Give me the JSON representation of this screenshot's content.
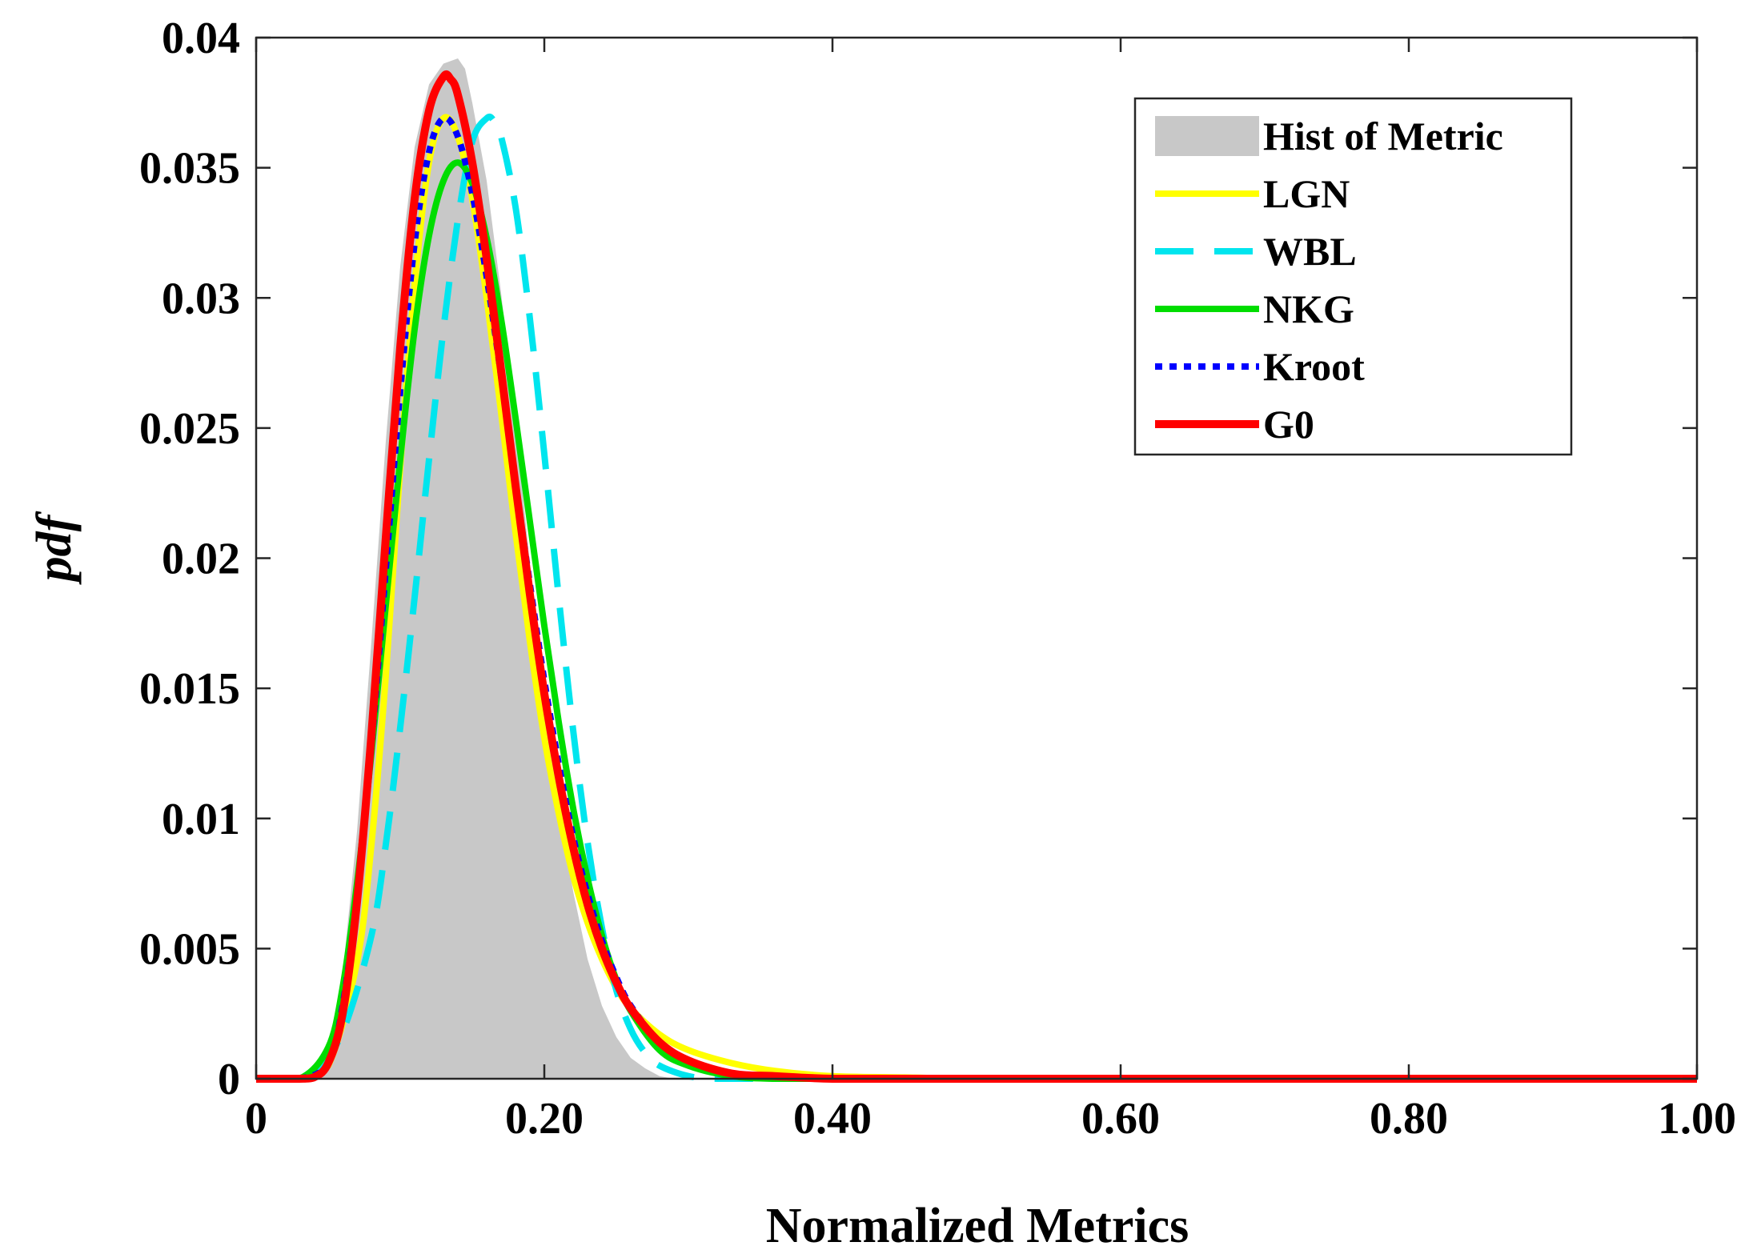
{
  "chart_data": {
    "type": "line",
    "title": "",
    "xlabel": "Normalized Metrics",
    "ylabel": "pdf",
    "xlim": [
      0,
      1
    ],
    "ylim": [
      0,
      0.04
    ],
    "grid": false,
    "legend_position": "top-right",
    "x_ticks": [
      0,
      0.2,
      0.4,
      0.6,
      0.8,
      1.0
    ],
    "x_tick_labels": [
      "0",
      "0.20",
      "0.40",
      "0.60",
      "0.80",
      "1.00"
    ],
    "y_ticks": [
      0,
      0.005,
      0.01,
      0.015,
      0.02,
      0.025,
      0.03,
      0.035,
      0.04
    ],
    "y_tick_labels": [
      "0",
      "0.005",
      "0.01",
      "0.015",
      "0.02",
      "0.025",
      "0.03",
      "0.035",
      "0.04"
    ],
    "histogram": {
      "name": "Hist of Metric",
      "color": "#c8c8c8",
      "x": [
        0.02,
        0.04,
        0.05,
        0.06,
        0.07,
        0.08,
        0.09,
        0.1,
        0.11,
        0.12,
        0.13,
        0.14,
        0.145,
        0.15,
        0.16,
        0.17,
        0.18,
        0.19,
        0.2,
        0.21,
        0.22,
        0.23,
        0.24,
        0.25,
        0.26,
        0.27,
        0.28,
        0.29
      ],
      "values": [
        0,
        0.0003,
        0.0012,
        0.004,
        0.0095,
        0.0168,
        0.0245,
        0.0312,
        0.0358,
        0.0382,
        0.039,
        0.0392,
        0.0388,
        0.0375,
        0.0345,
        0.0302,
        0.0252,
        0.0198,
        0.0148,
        0.0106,
        0.0072,
        0.0046,
        0.0028,
        0.0016,
        0.0008,
        0.0004,
        0.0001,
        0
      ]
    },
    "series": [
      {
        "name": "LGN",
        "color": "#ffff00",
        "style": "solid",
        "x": [
          0,
          0.03,
          0.05,
          0.07,
          0.08,
          0.09,
          0.1,
          0.11,
          0.12,
          0.13,
          0.14,
          0.15,
          0.16,
          0.17,
          0.18,
          0.19,
          0.2,
          0.21,
          0.22,
          0.23,
          0.24,
          0.25,
          0.26,
          0.28,
          0.3,
          0.33,
          0.36,
          0.4,
          0.45,
          0.5,
          0.6,
          0.8,
          1.0
        ],
        "values": [
          0,
          0,
          0.0005,
          0.0045,
          0.009,
          0.0155,
          0.0235,
          0.0305,
          0.0352,
          0.0369,
          0.0362,
          0.0338,
          0.03,
          0.0256,
          0.021,
          0.0168,
          0.0131,
          0.0102,
          0.0078,
          0.006,
          0.0046,
          0.0035,
          0.0027,
          0.0017,
          0.0011,
          0.0006,
          0.0003,
          0.0001,
          5e-05,
          0,
          0,
          0,
          0
        ]
      },
      {
        "name": "WBL",
        "color": "#00e5ee",
        "style": "dashed",
        "x": [
          0,
          0.02,
          0.04,
          0.06,
          0.08,
          0.09,
          0.1,
          0.11,
          0.12,
          0.13,
          0.14,
          0.15,
          0.16,
          0.165,
          0.17,
          0.18,
          0.19,
          0.2,
          0.21,
          0.22,
          0.23,
          0.24,
          0.25,
          0.26,
          0.27,
          0.28,
          0.3,
          0.32,
          0.35,
          0.4,
          0.6,
          0.8,
          1.0
        ],
        "values": [
          0,
          0,
          0.0003,
          0.0018,
          0.0055,
          0.009,
          0.0135,
          0.0185,
          0.0238,
          0.0288,
          0.033,
          0.036,
          0.0369,
          0.0368,
          0.0362,
          0.0335,
          0.0292,
          0.024,
          0.0185,
          0.0134,
          0.0091,
          0.0058,
          0.0034,
          0.0019,
          0.001,
          0.0005,
          0.0001,
          0,
          0,
          0,
          0,
          0,
          0
        ]
      },
      {
        "name": "NKG",
        "color": "#00dd00",
        "style": "solid",
        "x": [
          0,
          0.03,
          0.05,
          0.06,
          0.07,
          0.08,
          0.09,
          0.1,
          0.11,
          0.12,
          0.13,
          0.14,
          0.15,
          0.16,
          0.17,
          0.18,
          0.19,
          0.2,
          0.21,
          0.22,
          0.23,
          0.24,
          0.25,
          0.26,
          0.28,
          0.3,
          0.33,
          0.36,
          0.4,
          0.45,
          0.6,
          0.8,
          1.0
        ],
        "values": [
          0,
          0,
          0.0012,
          0.0035,
          0.0075,
          0.0125,
          0.0182,
          0.0238,
          0.0288,
          0.0324,
          0.0345,
          0.0352,
          0.0344,
          0.0323,
          0.0292,
          0.0254,
          0.0214,
          0.0174,
          0.0137,
          0.0104,
          0.0077,
          0.0055,
          0.0038,
          0.0026,
          0.0011,
          0.0005,
          0.0001,
          0,
          0,
          0,
          0,
          0,
          0
        ]
      },
      {
        "name": "Kroot",
        "color": "#0000ff",
        "style": "dotted",
        "x": [
          0,
          0.03,
          0.05,
          0.06,
          0.07,
          0.08,
          0.09,
          0.1,
          0.11,
          0.12,
          0.13,
          0.14,
          0.15,
          0.16,
          0.17,
          0.18,
          0.19,
          0.2,
          0.21,
          0.22,
          0.23,
          0.24,
          0.25,
          0.26,
          0.28,
          0.3,
          0.33,
          0.36,
          0.4,
          0.45,
          0.6,
          0.8,
          1.0
        ],
        "values": [
          0,
          0,
          0.0006,
          0.0028,
          0.007,
          0.0128,
          0.0196,
          0.0264,
          0.0321,
          0.0356,
          0.0369,
          0.0362,
          0.034,
          0.0308,
          0.027,
          0.0229,
          0.019,
          0.0153,
          0.0121,
          0.0093,
          0.0071,
          0.0053,
          0.0039,
          0.0028,
          0.0014,
          0.0007,
          0.0002,
          0.0001,
          0,
          0,
          0,
          0,
          0
        ]
      },
      {
        "name": "G0",
        "color": "#ff0000",
        "style": "solid",
        "x": [
          0,
          0.03,
          0.04,
          0.05,
          0.06,
          0.07,
          0.08,
          0.09,
          0.1,
          0.11,
          0.12,
          0.13,
          0.135,
          0.14,
          0.15,
          0.16,
          0.17,
          0.18,
          0.19,
          0.2,
          0.21,
          0.22,
          0.23,
          0.24,
          0.25,
          0.26,
          0.28,
          0.3,
          0.33,
          0.36,
          0.4,
          0.45,
          0.6,
          0.8,
          1.0
        ],
        "values": [
          0,
          0,
          5e-05,
          0.0006,
          0.0025,
          0.0068,
          0.0132,
          0.0208,
          0.0281,
          0.0338,
          0.0372,
          0.0385,
          0.0384,
          0.0378,
          0.0352,
          0.0315,
          0.0272,
          0.0228,
          0.0186,
          0.0148,
          0.0116,
          0.0089,
          0.0067,
          0.005,
          0.0037,
          0.0027,
          0.0014,
          0.0007,
          0.0002,
          0.0001,
          0,
          0,
          0,
          0,
          0
        ]
      }
    ]
  }
}
